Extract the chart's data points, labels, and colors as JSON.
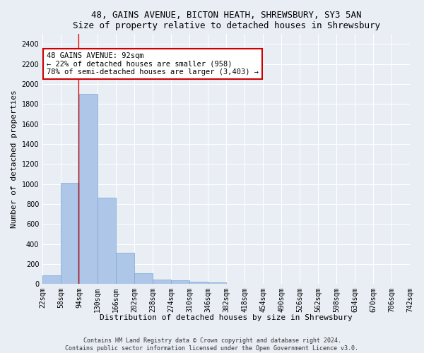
{
  "title_line1": "48, GAINS AVENUE, BICTON HEATH, SHREWSBURY, SY3 5AN",
  "title_line2": "Size of property relative to detached houses in Shrewsbury",
  "xlabel": "Distribution of detached houses by size in Shrewsbury",
  "ylabel": "Number of detached properties",
  "bar_values": [
    85,
    1010,
    1900,
    860,
    315,
    110,
    45,
    35,
    25,
    15,
    0,
    0,
    0,
    0,
    0,
    0,
    0,
    0,
    0,
    0
  ],
  "bin_edges": [
    22,
    58,
    94,
    130,
    166,
    202,
    238,
    274,
    310,
    346,
    382,
    418,
    454,
    490,
    526,
    562,
    598,
    634,
    670,
    706,
    742
  ],
  "tick_labels": [
    "22sqm",
    "58sqm",
    "94sqm",
    "130sqm",
    "166sqm",
    "202sqm",
    "238sqm",
    "274sqm",
    "310sqm",
    "346sqm",
    "382sqm",
    "418sqm",
    "454sqm",
    "490sqm",
    "526sqm",
    "562sqm",
    "598sqm",
    "634sqm",
    "670sqm",
    "706sqm",
    "742sqm"
  ],
  "bar_color": "#aec6e8",
  "bar_edge_color": "#7aa8d4",
  "bar_edge_width": 0.5,
  "property_line_x": 92,
  "property_line_color": "#cc0000",
  "annotation_text": "48 GAINS AVENUE: 92sqm\n← 22% of detached houses are smaller (958)\n78% of semi-detached houses are larger (3,403) →",
  "annotation_box_color": "#ffffff",
  "annotation_box_edge": "#cc0000",
  "ylim": [
    0,
    2500
  ],
  "yticks": [
    0,
    200,
    400,
    600,
    800,
    1000,
    1200,
    1400,
    1600,
    1800,
    2000,
    2200,
    2400
  ],
  "footer_line1": "Contains HM Land Registry data © Crown copyright and database right 2024.",
  "footer_line2": "Contains public sector information licensed under the Open Government Licence v3.0.",
  "background_color": "#e8eef4",
  "plot_bg_color": "#e8eef4",
  "grid_color": "#ffffff",
  "title_fontsize": 9,
  "subtitle_fontsize": 8.5,
  "axis_label_fontsize": 8,
  "tick_fontsize": 7,
  "annotation_fontsize": 7.5,
  "footer_fontsize": 6
}
